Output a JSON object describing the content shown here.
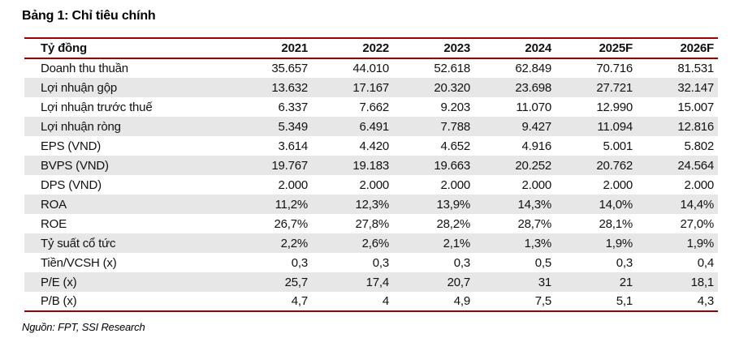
{
  "title": "Bảng 1: Chỉ tiêu chính",
  "colors": {
    "accent_red": "#A00000",
    "row_alt_gray": "#E7E7E7",
    "text": "#111111"
  },
  "table": {
    "unit_header": "Tỷ đồng",
    "year_headers": [
      "2021",
      "2022",
      "2023",
      "2024",
      "2025F",
      "2026F"
    ],
    "rows": [
      {
        "label": "Doanh thu thuần",
        "values": [
          "35.657",
          "44.010",
          "52.618",
          "62.849",
          "70.716",
          "81.531"
        ]
      },
      {
        "label": "Lợi nhuận gộp",
        "values": [
          "13.632",
          "17.167",
          "20.320",
          "23.698",
          "27.721",
          "32.147"
        ]
      },
      {
        "label": "Lợi nhuận trước thuế",
        "values": [
          "6.337",
          "7.662",
          "9.203",
          "11.070",
          "12.990",
          "15.007"
        ]
      },
      {
        "label": "Lợi nhuận ròng",
        "values": [
          "5.349",
          "6.491",
          "7.788",
          "9.427",
          "11.094",
          "12.816"
        ]
      },
      {
        "label": "EPS (VND)",
        "values": [
          "3.614",
          "4.420",
          "4.652",
          "4.916",
          "5.001",
          "5.802"
        ]
      },
      {
        "label": "BVPS (VND)",
        "values": [
          "19.767",
          "19.183",
          "19.663",
          "20.252",
          "20.762",
          "24.564"
        ]
      },
      {
        "label": "DPS (VND)",
        "values": [
          "2.000",
          "2.000",
          "2.000",
          "2.000",
          "2.000",
          "2.000"
        ]
      },
      {
        "label": "ROA",
        "values": [
          "11,2%",
          "12,3%",
          "13,9%",
          "14,3%",
          "14,0%",
          "14,4%"
        ]
      },
      {
        "label": "ROE",
        "values": [
          "26,7%",
          "27,8%",
          "28,2%",
          "28,7%",
          "28,1%",
          "27,0%"
        ]
      },
      {
        "label": "Tỷ suất cổ tức",
        "values": [
          "2,2%",
          "2,6%",
          "2,1%",
          "1,3%",
          "1,9%",
          "1,9%"
        ]
      },
      {
        "label": "Tiền/VCSH (x)",
        "values": [
          "0,3",
          "0,3",
          "0,3",
          "0,5",
          "0,3",
          "0,4"
        ]
      },
      {
        "label": "P/E (x)",
        "values": [
          "25,7",
          "17,4",
          "20,7",
          "31",
          "21",
          "18,1"
        ]
      },
      {
        "label": "P/B (x)",
        "values": [
          "4,7",
          "4",
          "4,9",
          "7,5",
          "5,1",
          "4,3"
        ]
      }
    ]
  },
  "footer": {
    "source": "Nguồn: FPT, SSI Research"
  }
}
